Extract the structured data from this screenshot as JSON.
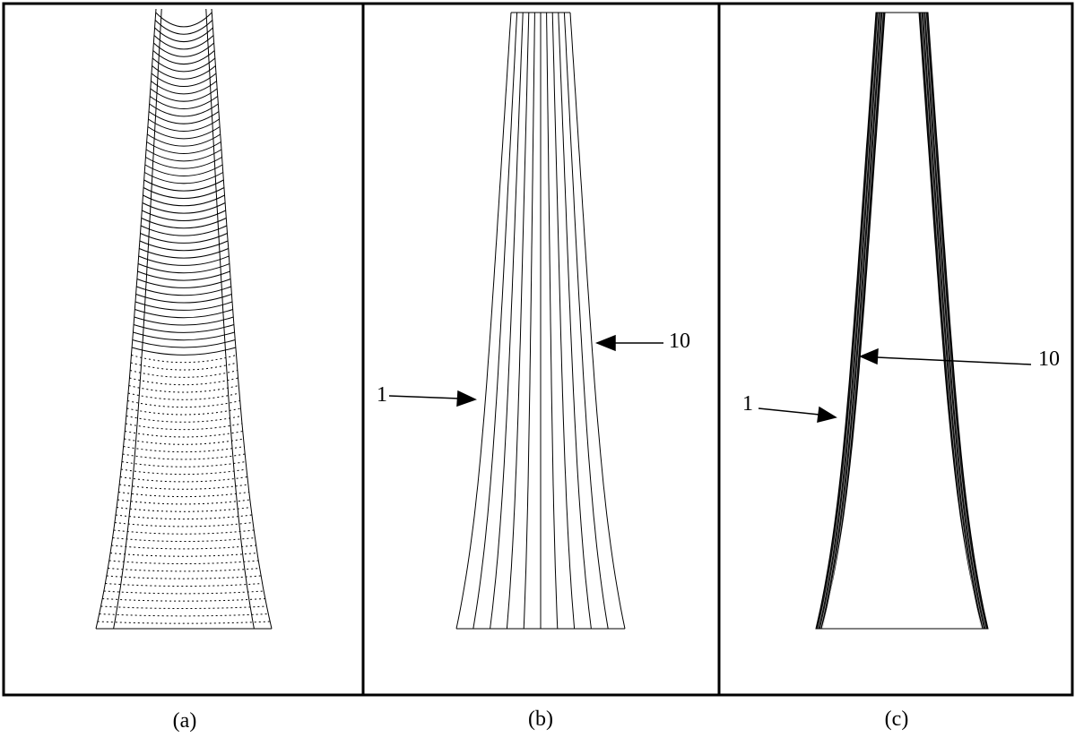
{
  "panels": [
    {
      "caption": "(a)"
    },
    {
      "caption": "(b)",
      "labels": [
        "1",
        "10"
      ]
    },
    {
      "caption": "(c)",
      "labels": [
        "1",
        "10"
      ]
    }
  ]
}
